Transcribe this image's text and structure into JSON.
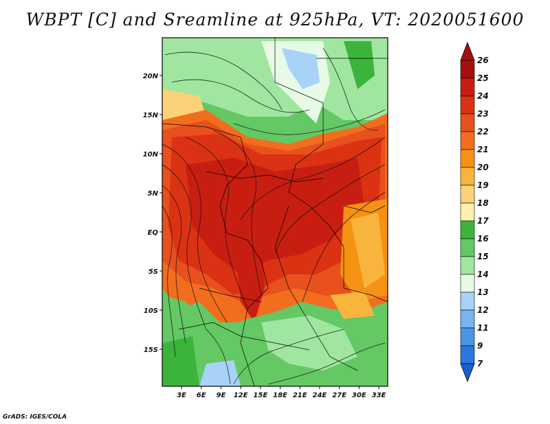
{
  "title": "WBPT [C] and Sreamline at 925hPa, VT: 2020051600",
  "credit": "GrADS: IGES/COLA",
  "map": {
    "variable": "Wet-bulb potential temperature",
    "units": "C",
    "level": "925hPa",
    "valid_time": "2020051600",
    "lon_ticks": [
      "3E",
      "6E",
      "9E",
      "12E",
      "15E",
      "18E",
      "21E",
      "24E",
      "27E",
      "30E",
      "33E"
    ],
    "lat_ticks": [
      "20N",
      "15N",
      "10N",
      "5N",
      "EQ",
      "5S",
      "10S",
      "15S"
    ]
  },
  "colorbar": {
    "labels": [
      "26",
      "25",
      "24",
      "23",
      "22",
      "21",
      "20",
      "19",
      "18",
      "17",
      "16",
      "15",
      "14",
      "13",
      "12",
      "11",
      "9",
      "7"
    ],
    "colors": [
      "#a50f0f",
      "#c81e12",
      "#dc3214",
      "#e8501e",
      "#f26e1e",
      "#f59214",
      "#f8b43c",
      "#fbd278",
      "#fdf0a8",
      "#3cb43c",
      "#64c864",
      "#a0e6a0",
      "#e6fae6",
      "#a8d2f8",
      "#78b4f0",
      "#4a96e6",
      "#2a78de",
      "#1a5ed2"
    ]
  }
}
